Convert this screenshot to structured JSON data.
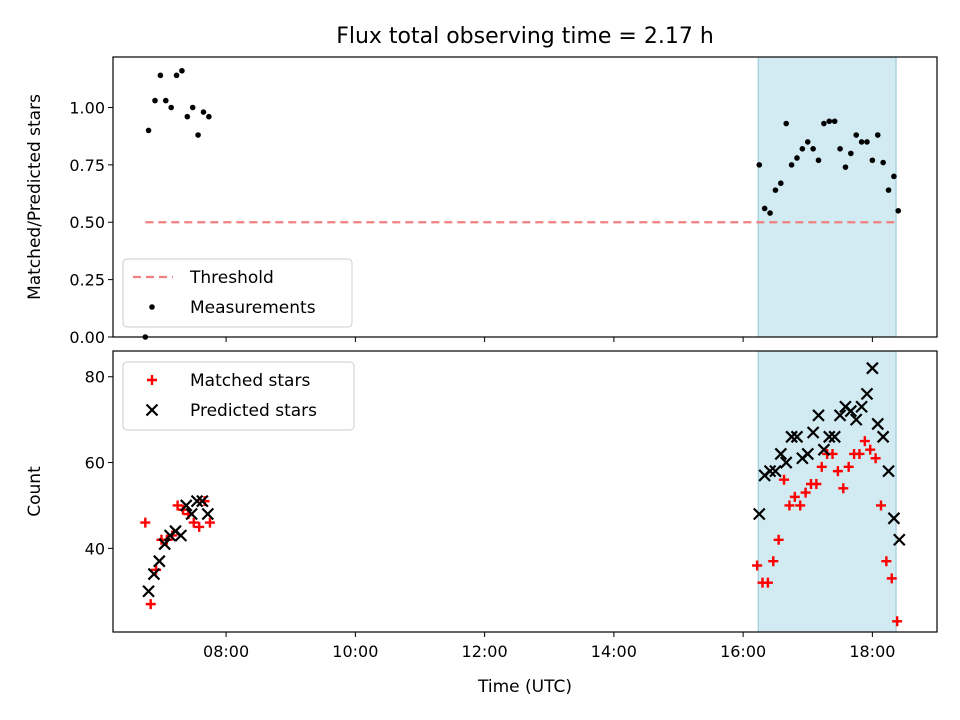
{
  "chart_data": {
    "title": "Flux total observing time = 2.17 h",
    "xlabel": "Time (UTC)",
    "x_ticks": [
      "08:00",
      "10:00",
      "12:00",
      "14:00",
      "16:00",
      "18:00"
    ],
    "xlim": [
      "06:15",
      "19:00"
    ],
    "shaded_span": {
      "start": "16:14",
      "end": "18:22",
      "color": "#add8e6"
    },
    "panels": [
      {
        "type": "scatter",
        "ylabel": "Matched/Predicted stars",
        "ylim": [
          0.0,
          1.22
        ],
        "y_ticks": [
          "0.00",
          "0.25",
          "0.50",
          "0.75",
          "1.00"
        ],
        "legend_position": "lower-left",
        "series": [
          {
            "name": "Threshold",
            "kind": "dashed-line",
            "color": "#f08080",
            "x": [
              "06:45",
              "18:25"
            ],
            "y": [
              0.5,
              0.5
            ]
          },
          {
            "name": "Measurements",
            "kind": "dots",
            "color": "#000000",
            "points": [
              [
                "06:45",
                0.0
              ],
              [
                "06:48",
                0.9
              ],
              [
                "06:54",
                1.03
              ],
              [
                "06:59",
                1.14
              ],
              [
                "07:04",
                1.03
              ],
              [
                "07:09",
                1.0
              ],
              [
                "07:14",
                1.14
              ],
              [
                "07:19",
                1.16
              ],
              [
                "07:24",
                0.96
              ],
              [
                "07:29",
                1.0
              ],
              [
                "07:34",
                0.88
              ],
              [
                "07:39",
                0.98
              ],
              [
                "07:44",
                0.96
              ],
              [
                "16:15",
                0.75
              ],
              [
                "16:20",
                0.56
              ],
              [
                "16:25",
                0.54
              ],
              [
                "16:30",
                0.64
              ],
              [
                "16:35",
                0.67
              ],
              [
                "16:40",
                0.93
              ],
              [
                "16:45",
                0.75
              ],
              [
                "16:50",
                0.78
              ],
              [
                "16:55",
                0.82
              ],
              [
                "17:00",
                0.85
              ],
              [
                "17:05",
                0.82
              ],
              [
                "17:10",
                0.77
              ],
              [
                "17:15",
                0.93
              ],
              [
                "17:20",
                0.94
              ],
              [
                "17:25",
                0.94
              ],
              [
                "17:30",
                0.82
              ],
              [
                "17:35",
                0.74
              ],
              [
                "17:40",
                0.8
              ],
              [
                "17:45",
                0.88
              ],
              [
                "17:50",
                0.85
              ],
              [
                "17:55",
                0.85
              ],
              [
                "18:00",
                0.77
              ],
              [
                "18:05",
                0.88
              ],
              [
                "18:10",
                0.76
              ],
              [
                "18:15",
                0.64
              ],
              [
                "18:20",
                0.7
              ],
              [
                "18:24",
                0.55
              ]
            ]
          }
        ]
      },
      {
        "type": "scatter",
        "ylabel": "Count",
        "ylim": [
          20.5,
          86
        ],
        "y_ticks": [
          "40",
          "60",
          "80"
        ],
        "legend_position": "upper-left",
        "series": [
          {
            "name": "Matched stars",
            "kind": "plus",
            "color": "#ff0000",
            "points": [
              [
                "06:45",
                46
              ],
              [
                "06:50",
                27
              ],
              [
                "06:55",
                35
              ],
              [
                "07:00",
                42
              ],
              [
                "07:05",
                42
              ],
              [
                "07:10",
                43
              ],
              [
                "07:15",
                50
              ],
              [
                "07:20",
                49
              ],
              [
                "07:25",
                48
              ],
              [
                "07:30",
                46
              ],
              [
                "07:35",
                45
              ],
              [
                "07:40",
                51
              ],
              [
                "07:45",
                46
              ],
              [
                "16:13",
                36
              ],
              [
                "16:18",
                32
              ],
              [
                "16:23",
                32
              ],
              [
                "16:28",
                37
              ],
              [
                "16:33",
                42
              ],
              [
                "16:38",
                56
              ],
              [
                "16:43",
                50
              ],
              [
                "16:48",
                52
              ],
              [
                "16:53",
                50
              ],
              [
                "16:58",
                53
              ],
              [
                "17:03",
                55
              ],
              [
                "17:08",
                55
              ],
              [
                "17:13",
                59
              ],
              [
                "17:18",
                62
              ],
              [
                "17:23",
                62
              ],
              [
                "17:28",
                58
              ],
              [
                "17:33",
                54
              ],
              [
                "17:38",
                59
              ],
              [
                "17:43",
                62
              ],
              [
                "17:48",
                62
              ],
              [
                "17:53",
                65
              ],
              [
                "17:58",
                63
              ],
              [
                "18:03",
                61
              ],
              [
                "18:08",
                50
              ],
              [
                "18:13",
                37
              ],
              [
                "18:18",
                33
              ],
              [
                "18:23",
                23
              ]
            ]
          },
          {
            "name": "Predicted stars",
            "kind": "cross",
            "color": "#000000",
            "points": [
              [
                "06:48",
                30
              ],
              [
                "06:53",
                34
              ],
              [
                "06:58",
                37
              ],
              [
                "07:03",
                41
              ],
              [
                "07:08",
                43
              ],
              [
                "07:13",
                44
              ],
              [
                "07:18",
                43
              ],
              [
                "07:23",
                50
              ],
              [
                "07:28",
                48
              ],
              [
                "07:33",
                51
              ],
              [
                "07:38",
                51
              ],
              [
                "07:43",
                48
              ],
              [
                "16:15",
                48
              ],
              [
                "16:20",
                57
              ],
              [
                "16:25",
                58
              ],
              [
                "16:30",
                58
              ],
              [
                "16:35",
                62
              ],
              [
                "16:40",
                60
              ],
              [
                "16:45",
                66
              ],
              [
                "16:50",
                66
              ],
              [
                "16:55",
                61
              ],
              [
                "17:00",
                62
              ],
              [
                "17:05",
                67
              ],
              [
                "17:10",
                71
              ],
              [
                "17:15",
                63
              ],
              [
                "17:20",
                66
              ],
              [
                "17:25",
                66
              ],
              [
                "17:30",
                71
              ],
              [
                "17:35",
                73
              ],
              [
                "17:40",
                72
              ],
              [
                "17:45",
                70
              ],
              [
                "17:50",
                73
              ],
              [
                "17:55",
                76
              ],
              [
                "18:00",
                82
              ],
              [
                "18:05",
                69
              ],
              [
                "18:10",
                66
              ],
              [
                "18:15",
                58
              ],
              [
                "18:20",
                47
              ],
              [
                "18:25",
                42
              ]
            ]
          }
        ]
      }
    ]
  }
}
